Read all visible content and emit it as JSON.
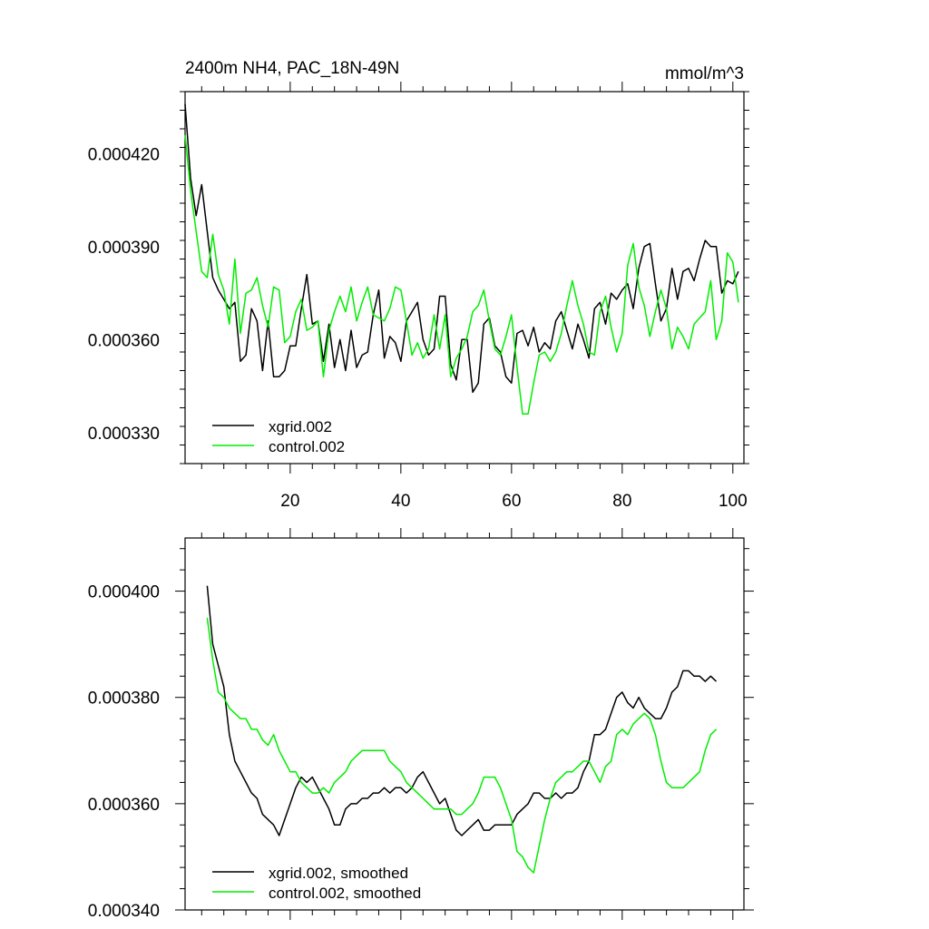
{
  "chart_data": [
    {
      "type": "line",
      "title": "2400m NH4, PAC_18N-49N",
      "units": "mmol/m^3",
      "xlim": [
        1,
        102
      ],
      "ylim": [
        0.00032,
        0.00044
      ],
      "xticks": [
        20,
        40,
        60,
        80,
        100
      ],
      "yticks": [
        0.00033,
        0.00036,
        0.00039,
        0.00042
      ],
      "ytick_labels": [
        "0.000330",
        "0.000360",
        "0.000390",
        "0.000420"
      ],
      "legend_position": "bottom-left",
      "x": [
        1,
        2,
        3,
        4,
        5,
        6,
        7,
        8,
        9,
        10,
        11,
        12,
        13,
        14,
        15,
        16,
        17,
        18,
        19,
        20,
        21,
        22,
        23,
        24,
        25,
        26,
        27,
        28,
        29,
        30,
        31,
        32,
        33,
        34,
        35,
        36,
        37,
        38,
        39,
        40,
        41,
        42,
        43,
        44,
        45,
        46,
        47,
        48,
        49,
        50,
        51,
        52,
        53,
        54,
        55,
        56,
        57,
        58,
        59,
        60,
        61,
        62,
        63,
        64,
        65,
        66,
        67,
        68,
        69,
        70,
        71,
        72,
        73,
        74,
        75,
        76,
        77,
        78,
        79,
        80,
        81,
        82,
        83,
        84,
        85,
        86,
        87,
        88,
        89,
        90,
        91,
        92,
        93,
        94,
        95,
        96,
        97,
        98,
        99,
        100,
        101
      ],
      "series": [
        {
          "name": "xgrid.002",
          "color": "#000000",
          "values": [
            0.000436,
            0.000412,
            0.0004,
            0.00041,
            0.000395,
            0.00038,
            0.000376,
            0.000373,
            0.00037,
            0.000372,
            0.000353,
            0.000355,
            0.00037,
            0.000366,
            0.00035,
            0.000366,
            0.000348,
            0.000348,
            0.00035,
            0.000358,
            0.000358,
            0.00037,
            0.000381,
            0.000365,
            0.000366,
            0.000353,
            0.000365,
            0.000351,
            0.00036,
            0.00035,
            0.000363,
            0.000351,
            0.000355,
            0.000356,
            0.000368,
            0.000376,
            0.000354,
            0.000361,
            0.000359,
            0.000353,
            0.000366,
            0.000369,
            0.000372,
            0.00036,
            0.000355,
            0.000357,
            0.000374,
            0.000374,
            0.000352,
            0.000347,
            0.00036,
            0.00036,
            0.000343,
            0.000346,
            0.000365,
            0.000367,
            0.000358,
            0.000356,
            0.000348,
            0.000346,
            0.000362,
            0.000363,
            0.000358,
            0.000364,
            0.000356,
            0.000359,
            0.000357,
            0.000366,
            0.000369,
            0.000363,
            0.000357,
            0.000365,
            0.00036,
            0.000354,
            0.00037,
            0.000372,
            0.000365,
            0.000375,
            0.000373,
            0.000376,
            0.000378,
            0.00037,
            0.000383,
            0.00039,
            0.000391,
            0.000378,
            0.000366,
            0.00037,
            0.000383,
            0.000373,
            0.000382,
            0.000383,
            0.000379,
            0.000386,
            0.000392,
            0.00039,
            0.00039,
            0.000375,
            0.000379,
            0.000378,
            0.000382
          ]
        },
        {
          "name": "control.002",
          "color": "#00ee00",
          "values": [
            0.000426,
            0.000408,
            0.000395,
            0.000382,
            0.00038,
            0.000394,
            0.000381,
            0.000376,
            0.000365,
            0.000386,
            0.000362,
            0.000375,
            0.000376,
            0.00038,
            0.000371,
            0.000364,
            0.000377,
            0.000376,
            0.000359,
            0.000361,
            0.000369,
            0.000373,
            0.000363,
            0.000364,
            0.000366,
            0.000348,
            0.000363,
            0.000369,
            0.000374,
            0.000369,
            0.000377,
            0.000366,
            0.000372,
            0.000377,
            0.000368,
            0.000367,
            0.000366,
            0.00037,
            0.000377,
            0.000376,
            0.000366,
            0.000355,
            0.000359,
            0.000354,
            0.000357,
            0.000368,
            0.000357,
            0.000368,
            0.000348,
            0.000354,
            0.000357,
            0.000361,
            0.000369,
            0.000371,
            0.000376,
            0.000366,
            0.000357,
            0.000355,
            0.000361,
            0.000368,
            0.000351,
            0.000336,
            0.000336,
            0.000346,
            0.000355,
            0.000356,
            0.000353,
            0.000356,
            0.000362,
            0.000371,
            0.000379,
            0.000371,
            0.000365,
            0.000356,
            0.000355,
            0.000369,
            0.000374,
            0.000364,
            0.000356,
            0.000362,
            0.000384,
            0.000391,
            0.000377,
            0.000371,
            0.000361,
            0.000369,
            0.000376,
            0.00037,
            0.000357,
            0.000364,
            0.000361,
            0.000357,
            0.000365,
            0.000367,
            0.000369,
            0.000379,
            0.00036,
            0.000366,
            0.000388,
            0.000385,
            0.000372
          ]
        }
      ]
    },
    {
      "type": "line",
      "title": "",
      "xlim": [
        1,
        102
      ],
      "ylim": [
        0.00034,
        0.00041
      ],
      "xticks": [
        20,
        40,
        60,
        80,
        100
      ],
      "yticks": [
        0.00034,
        0.00036,
        0.00038,
        0.0004
      ],
      "ytick_labels": [
        "0.000340",
        "0.000360",
        "0.000380",
        "0.000400"
      ],
      "legend_position": "bottom-left",
      "x": [
        5,
        6,
        7,
        8,
        9,
        10,
        11,
        12,
        13,
        14,
        15,
        16,
        17,
        18,
        19,
        20,
        21,
        22,
        23,
        24,
        25,
        26,
        27,
        28,
        29,
        30,
        31,
        32,
        33,
        34,
        35,
        36,
        37,
        38,
        39,
        40,
        41,
        42,
        43,
        44,
        45,
        46,
        47,
        48,
        49,
        50,
        51,
        52,
        53,
        54,
        55,
        56,
        57,
        58,
        59,
        60,
        61,
        62,
        63,
        64,
        65,
        66,
        67,
        68,
        69,
        70,
        71,
        72,
        73,
        74,
        75,
        76,
        77,
        78,
        79,
        80,
        81,
        82,
        83,
        84,
        85,
        86,
        87,
        88,
        89,
        90,
        91,
        92,
        93,
        94,
        95,
        96,
        97
      ],
      "series": [
        {
          "name": "xgrid.002, smoothed",
          "color": "#000000",
          "values": [
            0.000401,
            0.00039,
            0.000386,
            0.000382,
            0.000373,
            0.000368,
            0.000366,
            0.000364,
            0.000362,
            0.000361,
            0.000358,
            0.000357,
            0.000356,
            0.000354,
            0.000357,
            0.00036,
            0.000363,
            0.000365,
            0.000364,
            0.000365,
            0.000363,
            0.000361,
            0.000359,
            0.000356,
            0.000356,
            0.000359,
            0.00036,
            0.00036,
            0.000361,
            0.000361,
            0.000362,
            0.000362,
            0.000363,
            0.000362,
            0.000363,
            0.000363,
            0.000362,
            0.000363,
            0.000365,
            0.000366,
            0.000364,
            0.000362,
            0.00036,
            0.000361,
            0.000358,
            0.000355,
            0.000354,
            0.000355,
            0.000356,
            0.000357,
            0.000355,
            0.000355,
            0.000356,
            0.000356,
            0.000356,
            0.000356,
            0.000358,
            0.000359,
            0.00036,
            0.000362,
            0.000362,
            0.000361,
            0.000361,
            0.000362,
            0.000361,
            0.000362,
            0.000362,
            0.000363,
            0.000366,
            0.000368,
            0.000373,
            0.000373,
            0.000374,
            0.000377,
            0.00038,
            0.000381,
            0.000379,
            0.000378,
            0.00038,
            0.000378,
            0.000377,
            0.000376,
            0.000376,
            0.000378,
            0.000381,
            0.000382,
            0.000385,
            0.000385,
            0.000384,
            0.000384,
            0.000383,
            0.000384,
            0.000383
          ]
        },
        {
          "name": "control.002, smoothed",
          "color": "#00ee00",
          "values": [
            0.000395,
            0.000387,
            0.000381,
            0.00038,
            0.000378,
            0.000377,
            0.000376,
            0.000376,
            0.000374,
            0.000374,
            0.000372,
            0.000371,
            0.000373,
            0.00037,
            0.000368,
            0.000366,
            0.000366,
            0.000364,
            0.000363,
            0.000362,
            0.000362,
            0.000363,
            0.000362,
            0.000364,
            0.000365,
            0.000366,
            0.000368,
            0.000369,
            0.00037,
            0.00037,
            0.00037,
            0.00037,
            0.00037,
            0.000368,
            0.000367,
            0.000366,
            0.000364,
            0.000363,
            0.000362,
            0.000361,
            0.00036,
            0.000359,
            0.000359,
            0.000359,
            0.000359,
            0.000358,
            0.000358,
            0.000359,
            0.00036,
            0.000362,
            0.000365,
            0.000365,
            0.000365,
            0.000363,
            0.00036,
            0.000357,
            0.000351,
            0.00035,
            0.000348,
            0.000347,
            0.000352,
            0.000357,
            0.000361,
            0.000364,
            0.000365,
            0.000366,
            0.000366,
            0.000367,
            0.000368,
            0.000368,
            0.000366,
            0.000364,
            0.000367,
            0.000368,
            0.000373,
            0.000374,
            0.000373,
            0.000375,
            0.000376,
            0.000377,
            0.000376,
            0.000373,
            0.000368,
            0.000364,
            0.000363,
            0.000363,
            0.000363,
            0.000364,
            0.000365,
            0.000366,
            0.00037,
            0.000373,
            0.000374
          ]
        }
      ]
    }
  ]
}
